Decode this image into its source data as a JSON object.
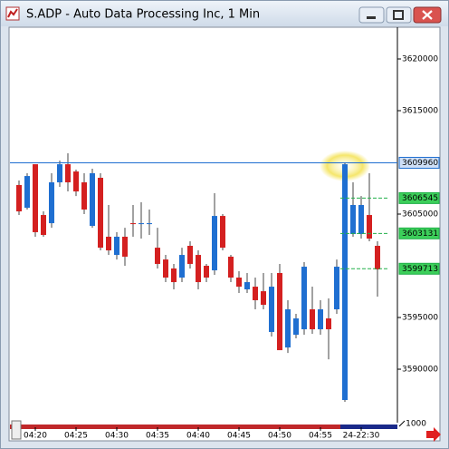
{
  "chart_data": {
    "type": "candlestick",
    "title": "S.ADP - Auto Data Processing Inc, 1 Min",
    "categories": [
      null,
      null,
      "04:20",
      null,
      null,
      null,
      null,
      "04:25",
      null,
      null,
      null,
      null,
      "04:30",
      null,
      null,
      null,
      null,
      "04:35",
      null,
      null,
      null,
      null,
      "04:40",
      null,
      null,
      null,
      null,
      "04:45",
      null,
      null,
      null,
      null,
      "04:50",
      null,
      null,
      null,
      null,
      "04:55",
      null,
      null,
      null,
      null,
      "24-22:30",
      null,
      null
    ],
    "open": [
      3607810,
      3605610,
      3609820,
      3604910,
      3604120,
      3608070,
      3609820,
      3609120,
      3608070,
      3603860,
      3608510,
      3602810,
      3601050,
      3602810,
      3604120,
      3604030,
      3604030,
      3601750,
      3600610,
      3599740,
      3598860,
      3601930,
      3601050,
      3600000,
      3599560,
      3604820,
      3600880,
      3598860,
      3597720,
      3597980,
      3597540,
      3593600,
      3599300,
      3592100,
      3593330,
      3593860,
      3595790,
      3593860,
      3594910,
      3595790,
      3587020,
      3603070,
      3603070,
      3604910,
      3601930
    ],
    "high": [
      3608250,
      3608950,
      3609820,
      3605260,
      3608950,
      3610180,
      3610880,
      3609300,
      3608950,
      3609390,
      3608950,
      3605880,
      3603250,
      3603680,
      3605880,
      3606140,
      3605440,
      3603680,
      3601050,
      3600180,
      3601750,
      3602370,
      3601490,
      3600180,
      3607020,
      3605000,
      3601050,
      3599470,
      3599300,
      3598860,
      3599300,
      3599300,
      3600180,
      3596670,
      3595350,
      3600350,
      3597980,
      3596670,
      3596840,
      3600610,
      3610000,
      3608070,
      3606750,
      3608950,
      3602370
    ],
    "low": [
      3604910,
      3605440,
      3602810,
      3602810,
      3603680,
      3607630,
      3607190,
      3606750,
      3605000,
      3603680,
      3601490,
      3601050,
      3600610,
      3600000,
      3602810,
      3602630,
      3602980,
      3599740,
      3598420,
      3597720,
      3598420,
      3599740,
      3597720,
      3598420,
      3599120,
      3601490,
      3598420,
      3597370,
      3597370,
      3595790,
      3595790,
      3593160,
      3591840,
      3591570,
      3592980,
      3593330,
      3593420,
      3593330,
      3590960,
      3595350,
      3586840,
      3602810,
      3602630,
      3602370,
      3597020
    ],
    "close": [
      3605260,
      3608680,
      3603250,
      3602980,
      3608070,
      3609820,
      3608070,
      3607190,
      3605440,
      3608950,
      3601750,
      3601490,
      3602810,
      3600880,
      3604030,
      3604120,
      3604120,
      3600180,
      3598860,
      3598420,
      3601050,
      3600180,
      3598420,
      3598860,
      3604820,
      3601750,
      3598860,
      3597980,
      3598420,
      3596670,
      3596230,
      3597980,
      3591840,
      3595790,
      3594910,
      3599910,
      3593860,
      3595790,
      3593860,
      3599910,
      3609820,
      3605880,
      3605880,
      3602630,
      3599650
    ],
    "up_color": "#1f6fd1",
    "down_color": "#d42020",
    "ylim": [
      3585090,
      3623860
    ],
    "yticks": [
      3590000,
      3595000,
      3605000,
      3615000,
      3620000
    ],
    "volume_ticks": [
      1000
    ],
    "grid": false,
    "price_lines": [
      {
        "value": 3609960,
        "color": "#1f6fd1",
        "style": "solid",
        "label_bg": "#cfe0f7"
      },
      {
        "value": 3606545,
        "color": "#22b04a",
        "style": "dashed",
        "label_bg": "#3ccf5a"
      },
      {
        "value": 3603131,
        "color": "#22b04a",
        "style": "dashed",
        "label_bg": "#3ccf5a"
      },
      {
        "value": 3599713,
        "color": "#22b04a",
        "style": "dashed",
        "label_bg": "#3ccf5a"
      }
    ]
  }
}
